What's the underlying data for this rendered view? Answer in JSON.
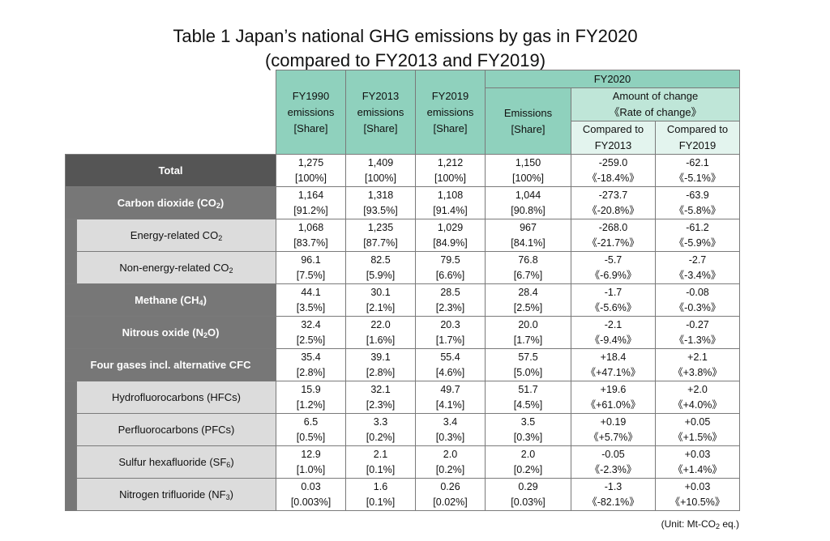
{
  "title": {
    "line1": "Table 1 Japan’s national GHG emissions by gas in FY2020",
    "line2": "(compared to FY2013 and FY2019)"
  },
  "header": {
    "fy2020": "FY2020",
    "col_fy1990": [
      "FY1990",
      "emissions",
      "[Share]"
    ],
    "col_fy2013": [
      "FY2013",
      "emissions",
      "[Share]"
    ],
    "col_fy2019": [
      "FY2019",
      "emissions",
      "[Share]"
    ],
    "col_emissions": [
      "Emissions",
      "[Share]"
    ],
    "amount_of_change": "Amount of change",
    "rate_of_change": "《Rate of change》",
    "compared_fy2013": [
      "Compared to",
      "FY2013"
    ],
    "compared_fy2019": [
      "Compared to",
      "FY2019"
    ]
  },
  "rows": [
    {
      "label": "Total",
      "type": "total",
      "values": [
        [
          "1,275",
          "[100%]"
        ],
        [
          "1,409",
          "[100%]"
        ],
        [
          "1,212",
          "[100%]"
        ],
        [
          "1,150",
          "[100%]"
        ],
        [
          "-259.0",
          "《-18.4%》"
        ],
        [
          "-62.1",
          "《-5.1%》"
        ]
      ]
    },
    {
      "label": "Carbon dioxide (CO",
      "sub": "2",
      "suffix": ")",
      "type": "main",
      "values": [
        [
          "1,164",
          "[91.2%]"
        ],
        [
          "1,318",
          "[93.5%]"
        ],
        [
          "1,108",
          "[91.4%]"
        ],
        [
          "1,044",
          "[90.8%]"
        ],
        [
          "-273.7",
          "《-20.8%》"
        ],
        [
          "-63.9",
          "《-5.8%》"
        ]
      ]
    },
    {
      "label": "Energy-related CO",
      "sub": "2",
      "suffix": "",
      "type": "sub",
      "values": [
        [
          "1,068",
          "[83.7%]"
        ],
        [
          "1,235",
          "[87.7%]"
        ],
        [
          "1,029",
          "[84.9%]"
        ],
        [
          "967",
          "[84.1%]"
        ],
        [
          "-268.0",
          "《-21.7%》"
        ],
        [
          "-61.2",
          "《-5.9%》"
        ]
      ]
    },
    {
      "label": "Non-energy-related CO",
      "sub": "2",
      "suffix": "",
      "type": "sub",
      "values": [
        [
          "96.1",
          "[7.5%]"
        ],
        [
          "82.5",
          "[5.9%]"
        ],
        [
          "79.5",
          "[6.6%]"
        ],
        [
          "76.8",
          "[6.7%]"
        ],
        [
          "-5.7",
          "《-6.9%》"
        ],
        [
          "-2.7",
          "《-3.4%》"
        ]
      ]
    },
    {
      "label": "Methane (CH",
      "sub": "4",
      "suffix": ")",
      "type": "main",
      "values": [
        [
          "44.1",
          "[3.5%]"
        ],
        [
          "30.1",
          "[2.1%]"
        ],
        [
          "28.5",
          "[2.3%]"
        ],
        [
          "28.4",
          "[2.5%]"
        ],
        [
          "-1.7",
          "《-5.6%》"
        ],
        [
          "-0.08",
          "《-0.3%》"
        ]
      ]
    },
    {
      "label": "Nitrous oxide (N",
      "sub": "2",
      "suffix": "O)",
      "type": "main",
      "values": [
        [
          "32.4",
          "[2.5%]"
        ],
        [
          "22.0",
          "[1.6%]"
        ],
        [
          "20.3",
          "[1.7%]"
        ],
        [
          "20.0",
          "[1.7%]"
        ],
        [
          "-2.1",
          "《-9.4%》"
        ],
        [
          "-0.27",
          "《-1.3%》"
        ]
      ]
    },
    {
      "label": "Four gases incl. alternative CFC",
      "sub": "",
      "suffix": "",
      "type": "main",
      "values": [
        [
          "35.4",
          "[2.8%]"
        ],
        [
          "39.1",
          "[2.8%]"
        ],
        [
          "55.4",
          "[4.6%]"
        ],
        [
          "57.5",
          "[5.0%]"
        ],
        [
          "+18.4",
          "《+47.1%》"
        ],
        [
          "+2.1",
          "《+3.8%》"
        ]
      ]
    },
    {
      "label": "Hydrofluorocarbons (HFCs)",
      "sub": "",
      "suffix": "",
      "type": "sub",
      "values": [
        [
          "15.9",
          "[1.2%]"
        ],
        [
          "32.1",
          "[2.3%]"
        ],
        [
          "49.7",
          "[4.1%]"
        ],
        [
          "51.7",
          "[4.5%]"
        ],
        [
          "+19.6",
          "《+61.0%》"
        ],
        [
          "+2.0",
          "《+4.0%》"
        ]
      ]
    },
    {
      "label": "Perfluorocarbons (PFCs)",
      "sub": "",
      "suffix": "",
      "type": "sub",
      "values": [
        [
          "6.5",
          "[0.5%]"
        ],
        [
          "3.3",
          "[0.2%]"
        ],
        [
          "3.4",
          "[0.3%]"
        ],
        [
          "3.5",
          "[0.3%]"
        ],
        [
          "+0.19",
          "《+5.7%》"
        ],
        [
          "+0.05",
          "《+1.5%》"
        ]
      ]
    },
    {
      "label": "Sulfur hexafluoride (SF",
      "sub": "6",
      "suffix": ")",
      "type": "sub",
      "values": [
        [
          "12.9",
          "[1.0%]"
        ],
        [
          "2.1",
          "[0.1%]"
        ],
        [
          "2.0",
          "[0.2%]"
        ],
        [
          "2.0",
          "[0.2%]"
        ],
        [
          "-0.05",
          "《-2.3%》"
        ],
        [
          "+0.03",
          "《+1.4%》"
        ]
      ]
    },
    {
      "label": "Nitrogen trifluoride (NF",
      "sub": "3",
      "suffix": ")",
      "type": "sub",
      "values": [
        [
          "0.03",
          "[0.003%]"
        ],
        [
          "1.6",
          "[0.1%]"
        ],
        [
          "0.26",
          "[0.02%]"
        ],
        [
          "0.29",
          "[0.03%]"
        ],
        [
          "-1.3",
          "《-82.1%》"
        ],
        [
          "+0.03",
          "《+10.5%》"
        ]
      ]
    }
  ],
  "unit": {
    "prefix": "(Unit: Mt-CO",
    "sub": "2",
    "suffix": " eq.)"
  }
}
